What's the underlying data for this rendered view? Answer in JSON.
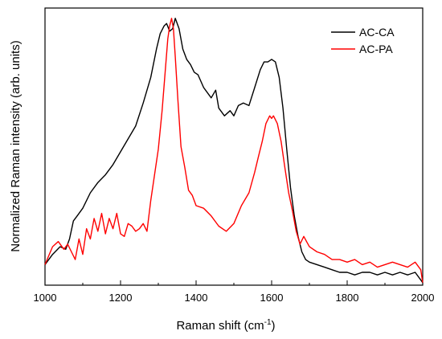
{
  "chart_data": {
    "type": "line",
    "xlabel": "Raman shift (cm",
    "xlabel_sup": "-1",
    "xlabel_suffix": ")",
    "ylabel": "Normalized Raman intensity (arb. units)",
    "xlim": [
      1000,
      2000
    ],
    "ylim": [
      -0.03,
      1.05
    ],
    "x_ticks": [
      1000,
      1200,
      1400,
      1600,
      1800,
      2000
    ],
    "y_ticks_labeled": false,
    "grid": false,
    "legend_position": "top-right",
    "series": [
      {
        "name": "AC-CA",
        "color": "#000000",
        "x": [
          1000,
          1020,
          1040,
          1055,
          1065,
          1075,
          1085,
          1100,
          1120,
          1140,
          1160,
          1180,
          1200,
          1220,
          1240,
          1260,
          1280,
          1295,
          1305,
          1315,
          1322,
          1330,
          1338,
          1345,
          1355,
          1365,
          1375,
          1385,
          1395,
          1405,
          1420,
          1440,
          1452,
          1460,
          1475,
          1490,
          1500,
          1512,
          1525,
          1540,
          1555,
          1570,
          1580,
          1590,
          1600,
          1610,
          1620,
          1630,
          1640,
          1650,
          1660,
          1670,
          1680,
          1690,
          1700,
          1720,
          1740,
          1760,
          1780,
          1800,
          1820,
          1840,
          1860,
          1880,
          1900,
          1920,
          1940,
          1960,
          1980,
          2000
        ],
        "y": [
          0.05,
          0.09,
          0.12,
          0.11,
          0.15,
          0.22,
          0.24,
          0.27,
          0.33,
          0.37,
          0.4,
          0.44,
          0.49,
          0.54,
          0.59,
          0.68,
          0.78,
          0.89,
          0.95,
          0.98,
          0.99,
          0.96,
          0.97,
          1.01,
          0.97,
          0.89,
          0.85,
          0.83,
          0.8,
          0.79,
          0.74,
          0.7,
          0.73,
          0.66,
          0.63,
          0.65,
          0.63,
          0.67,
          0.68,
          0.67,
          0.74,
          0.81,
          0.84,
          0.84,
          0.85,
          0.84,
          0.78,
          0.66,
          0.5,
          0.35,
          0.24,
          0.16,
          0.1,
          0.07,
          0.06,
          0.05,
          0.04,
          0.03,
          0.02,
          0.02,
          0.01,
          0.02,
          0.02,
          0.01,
          0.02,
          0.01,
          0.02,
          0.01,
          0.02,
          -0.02
        ]
      },
      {
        "name": "AC-PA",
        "color": "#ff0000",
        "x": [
          1000,
          1020,
          1035,
          1050,
          1060,
          1070,
          1080,
          1090,
          1100,
          1110,
          1120,
          1130,
          1140,
          1150,
          1160,
          1170,
          1180,
          1190,
          1200,
          1210,
          1220,
          1230,
          1240,
          1250,
          1260,
          1270,
          1280,
          1290,
          1300,
          1310,
          1318,
          1325,
          1330,
          1335,
          1340,
          1345,
          1352,
          1360,
          1370,
          1380,
          1390,
          1400,
          1420,
          1440,
          1460,
          1480,
          1500,
          1520,
          1540,
          1555,
          1565,
          1575,
          1585,
          1595,
          1600,
          1605,
          1615,
          1625,
          1635,
          1645,
          1655,
          1665,
          1675,
          1685,
          1700,
          1720,
          1740,
          1760,
          1780,
          1800,
          1820,
          1840,
          1860,
          1880,
          1900,
          1920,
          1940,
          1960,
          1980,
          1995,
          2000
        ],
        "y": [
          0.05,
          0.12,
          0.14,
          0.11,
          0.13,
          0.1,
          0.07,
          0.15,
          0.09,
          0.19,
          0.15,
          0.23,
          0.18,
          0.25,
          0.17,
          0.23,
          0.19,
          0.25,
          0.17,
          0.16,
          0.21,
          0.2,
          0.18,
          0.19,
          0.21,
          0.18,
          0.3,
          0.4,
          0.5,
          0.65,
          0.8,
          0.93,
          0.98,
          1.01,
          0.97,
          0.86,
          0.69,
          0.51,
          0.43,
          0.34,
          0.32,
          0.28,
          0.27,
          0.24,
          0.2,
          0.18,
          0.21,
          0.28,
          0.33,
          0.41,
          0.47,
          0.53,
          0.6,
          0.63,
          0.62,
          0.63,
          0.6,
          0.53,
          0.43,
          0.33,
          0.26,
          0.18,
          0.13,
          0.16,
          0.12,
          0.1,
          0.09,
          0.07,
          0.07,
          0.06,
          0.07,
          0.05,
          0.06,
          0.04,
          0.05,
          0.06,
          0.05,
          0.04,
          0.06,
          0.03,
          -0.02
        ]
      }
    ]
  }
}
